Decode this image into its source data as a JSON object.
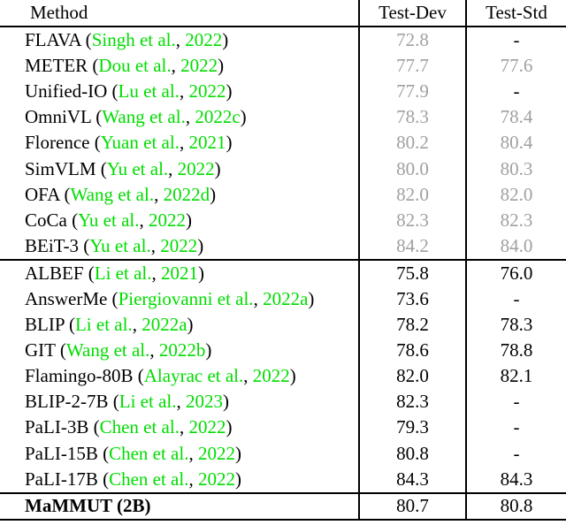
{
  "table": {
    "header": {
      "method": "Method",
      "test_dev": "Test-Dev",
      "test_std": "Test-Std"
    },
    "rows": [
      {
        "pre": "FLAVA (",
        "cite": "Singh et al.",
        "mid": ", ",
        "year": "2022",
        "post": ")",
        "dev": "72.8",
        "std": "-"
      },
      {
        "pre": "METER (",
        "cite": "Dou et al.",
        "mid": ", ",
        "year": "2022",
        "post": ")",
        "dev": "77.7",
        "std": "77.6"
      },
      {
        "pre": "Unified-IO (",
        "cite": "Lu et al.",
        "mid": ", ",
        "year": "2022",
        "post": ")",
        "dev": "77.9",
        "std": "-"
      },
      {
        "pre": "OmniVL (",
        "cite": "Wang et al.",
        "mid": ", ",
        "year": "2022c",
        "post": ")",
        "dev": "78.3",
        "std": "78.4"
      },
      {
        "pre": "Florence (",
        "cite": "Yuan et al.",
        "mid": ", ",
        "year": "2021",
        "post": ")",
        "dev": "80.2",
        "std": "80.4"
      },
      {
        "pre": "SimVLM (",
        "cite": "Yu et al.",
        "mid": ", ",
        "year": "2022",
        "post": ")",
        "dev": "80.0",
        "std": "80.3"
      },
      {
        "pre": "OFA (",
        "cite": "Wang et al.",
        "mid": ", ",
        "year": "2022d",
        "post": ")",
        "dev": "82.0",
        "std": "82.0"
      },
      {
        "pre": "CoCa (",
        "cite": "Yu et al.",
        "mid": ", ",
        "year": "2022",
        "post": ")",
        "dev": "82.3",
        "std": "82.3"
      },
      {
        "pre": "BEiT-3 (",
        "cite": "Yu et al.",
        "mid": ", ",
        "year": "2022",
        "post": ")",
        "dev": "84.2",
        "std": "84.0"
      },
      {
        "pre": "ALBEF (",
        "cite": "Li et al.",
        "mid": ", ",
        "year": "2021",
        "post": ")",
        "dev": "75.8",
        "std": "76.0"
      },
      {
        "pre": "AnswerMe (",
        "cite": "Piergiovanni et al.",
        "mid": ", ",
        "year": "2022a",
        "post": ")",
        "dev": "73.6",
        "std": "-"
      },
      {
        "pre": "BLIP (",
        "cite": "Li et al.",
        "mid": ", ",
        "year": "2022a",
        "post": ")",
        "dev": "78.2",
        "std": "78.3"
      },
      {
        "pre": "GIT (",
        "cite": "Wang et al.",
        "mid": ", ",
        "year": "2022b",
        "post": ")",
        "dev": "78.6",
        "std": "78.8"
      },
      {
        "pre": "Flamingo-80B (",
        "cite": "Alayrac et al.",
        "mid": ", ",
        "year": "2022",
        "post": ")",
        "dev": "82.0",
        "std": "82.1"
      },
      {
        "pre": "BLIP-2-7B (",
        "cite": "Li et al.",
        "mid": ", ",
        "year": "2023",
        "post": ")",
        "dev": "82.3",
        "std": "-"
      },
      {
        "pre": "PaLI-3B (",
        "cite": "Chen et al.",
        "mid": ", ",
        "year": "2022",
        "post": ")",
        "dev": "79.3",
        "std": "-"
      },
      {
        "pre": "PaLI-15B (",
        "cite": "Chen et al.",
        "mid": ", ",
        "year": "2022",
        "post": ")",
        "dev": "80.8",
        "std": "-"
      },
      {
        "pre": "PaLI-17B (",
        "cite": "Chen et al.",
        "mid": ", ",
        "year": "2022",
        "post": ")",
        "dev": "84.3",
        "std": "84.3"
      },
      {
        "pre": "MaMMUT (2B)",
        "cite": "",
        "mid": "",
        "year": "",
        "post": "",
        "dev": "80.7",
        "std": "80.8"
      }
    ]
  },
  "colors": {
    "citation_green": "#00dd00",
    "muted_value_gray": "#a0a0a0",
    "rule_black": "#000000"
  }
}
